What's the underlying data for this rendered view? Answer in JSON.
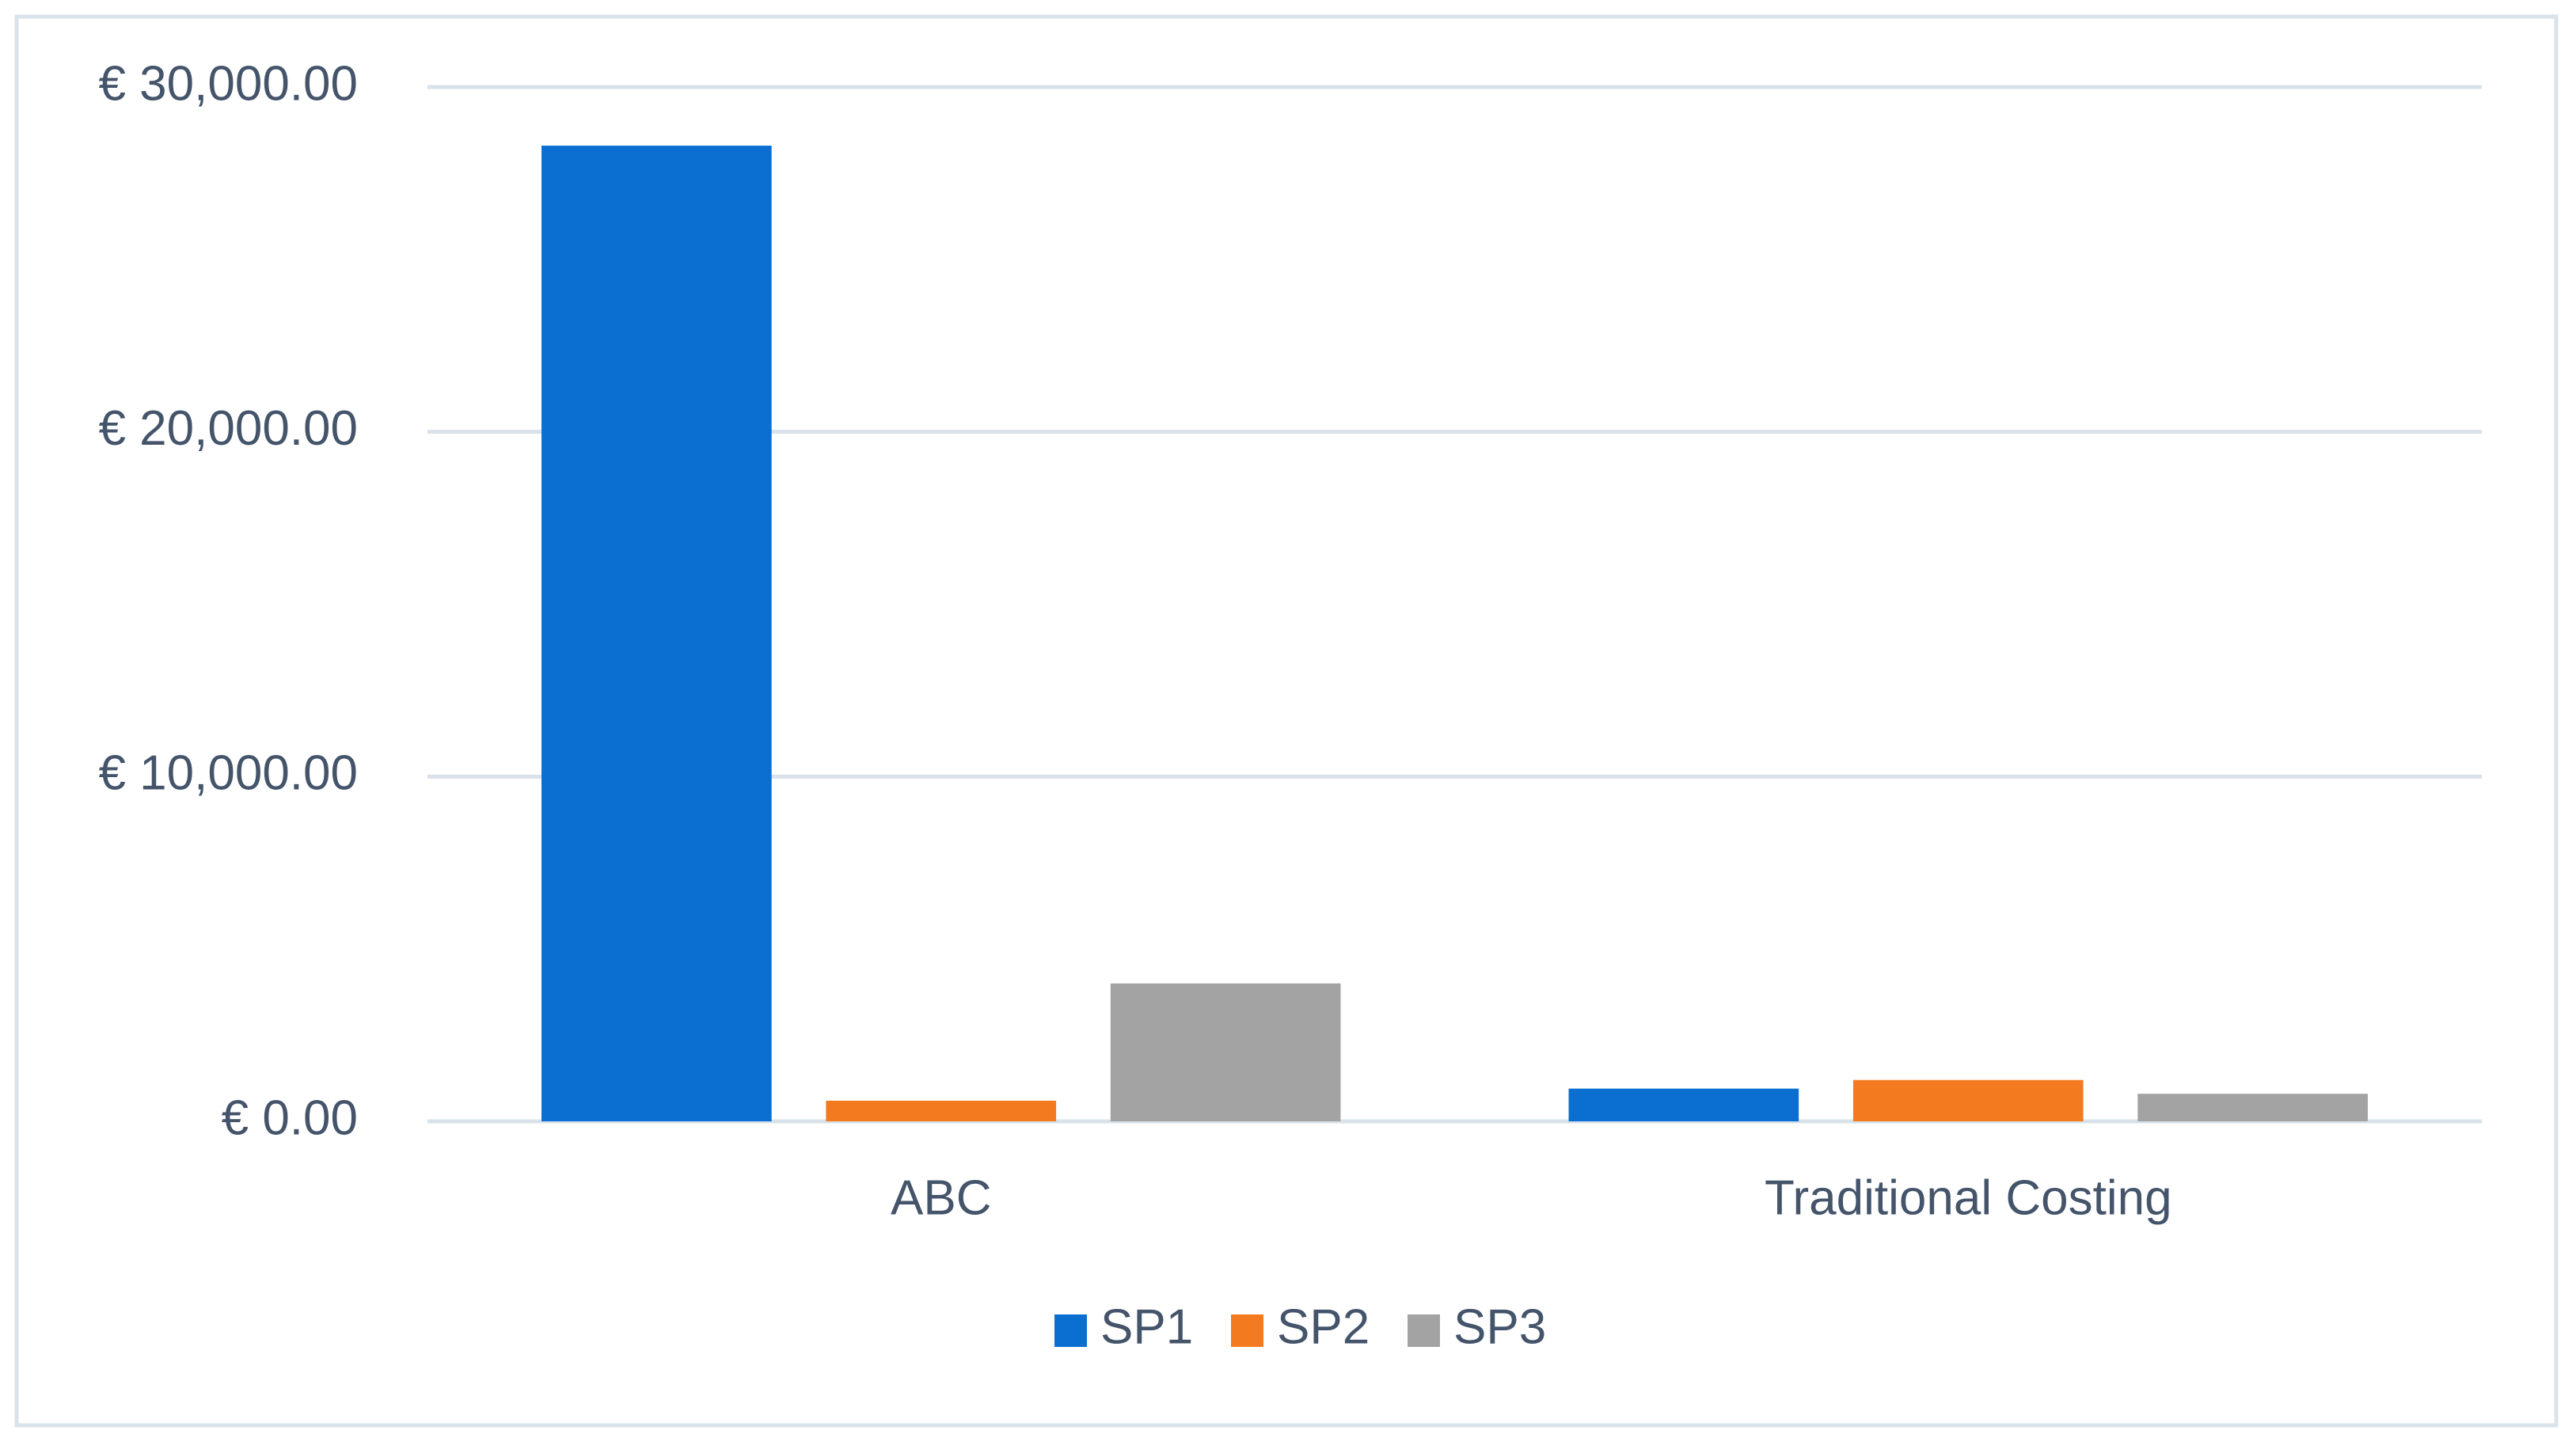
{
  "chart_data": {
    "type": "bar",
    "categories": [
      "ABC",
      "Traditional Costing"
    ],
    "series": [
      {
        "name": "SP1",
        "color": "#0a6fd0",
        "values": [
          28300,
          950
        ]
      },
      {
        "name": "SP2",
        "color": "#f47a1f",
        "values": [
          600,
          1200
        ]
      },
      {
        "name": "SP3",
        "color": "#a3a3a3",
        "values": [
          4000,
          800
        ]
      }
    ],
    "ylim": [
      0,
      30000
    ],
    "yticks": [
      {
        "value": 0,
        "label": "€ 0.00"
      },
      {
        "value": 10000,
        "label": "€ 10,000.00"
      },
      {
        "value": 20000,
        "label": "€ 20,000.00"
      },
      {
        "value": 30000,
        "label": "€ 30,000.00"
      }
    ],
    "grid": true,
    "legend": "bottom"
  }
}
